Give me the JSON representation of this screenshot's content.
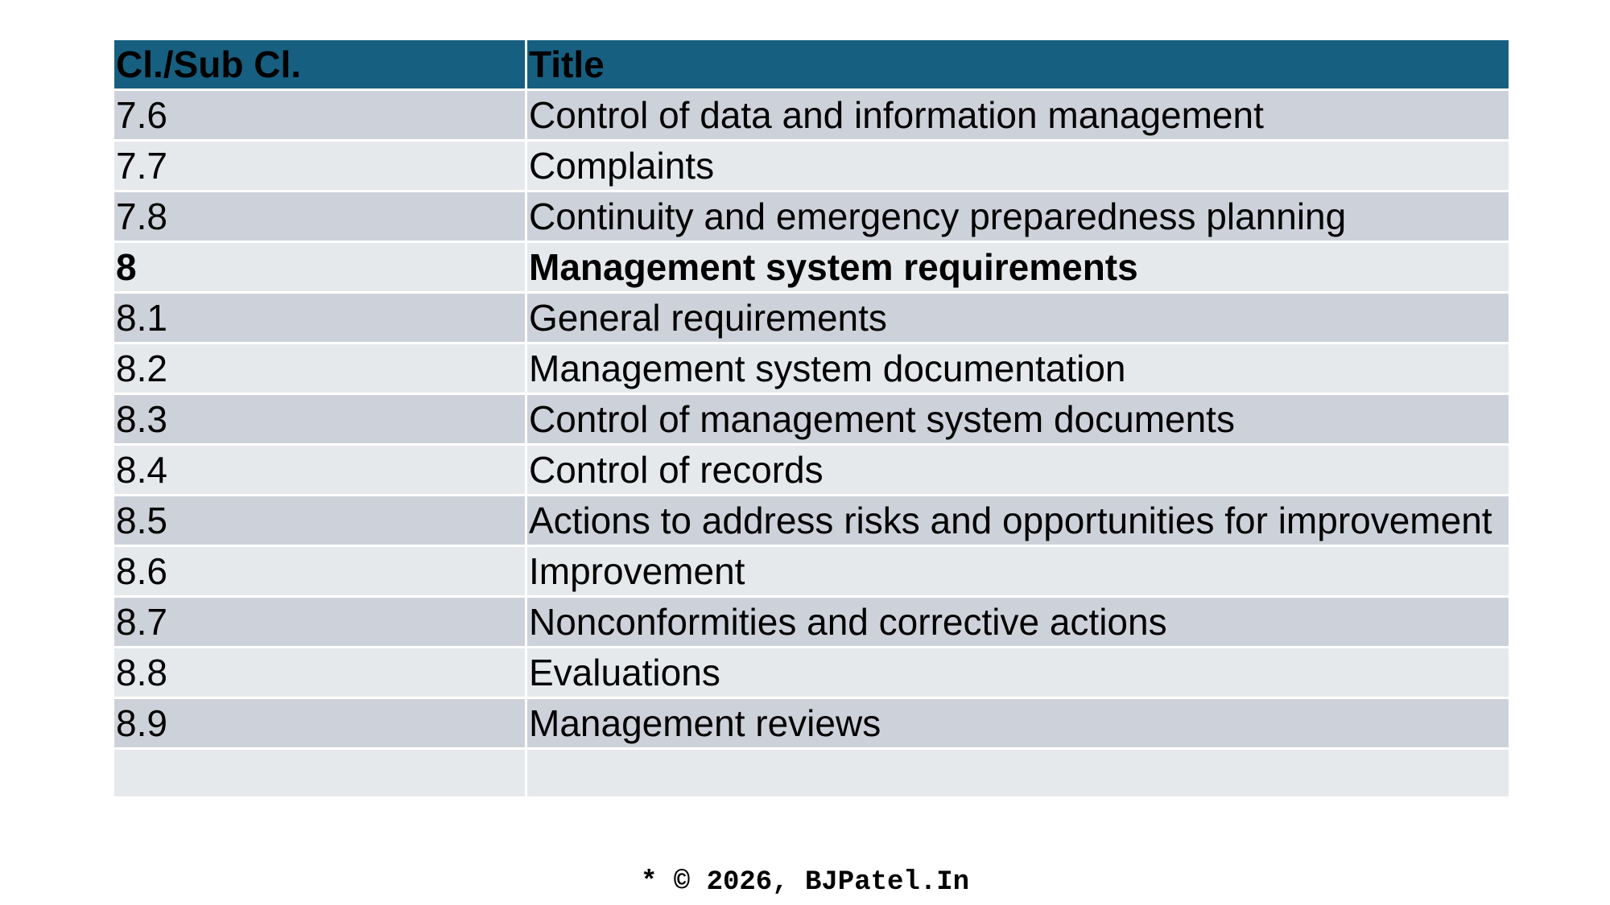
{
  "table": {
    "header": [
      "Cl./Sub Cl.",
      "Title"
    ],
    "rows": [
      {
        "clause": "7.6",
        "title": "Control of data and information management"
      },
      {
        "clause": "7.7",
        "title": "Complaints"
      },
      {
        "clause": "7.8",
        "title": "Continuity and emergency preparedness planning"
      },
      {
        "clause": "8",
        "title": "Management system requirements",
        "bold": true
      },
      {
        "clause": "8.1",
        "title": "General requirements"
      },
      {
        "clause": "8.2",
        "title": "Management system documentation"
      },
      {
        "clause": "8.3",
        "title": "Control of management system documents"
      },
      {
        "clause": "8.4",
        "title": "Control of records"
      },
      {
        "clause": "8.5",
        "title": "Actions to address risks and opportunities for improvement"
      },
      {
        "clause": "8.6",
        "title": "Improvement"
      },
      {
        "clause": "8.7",
        "title": "Nonconformities and corrective actions"
      },
      {
        "clause": "8.8",
        "title": "Evaluations"
      },
      {
        "clause": "8.9",
        "title": "Management reviews"
      }
    ]
  },
  "footer": "* © 2026, BJPatel.In"
}
